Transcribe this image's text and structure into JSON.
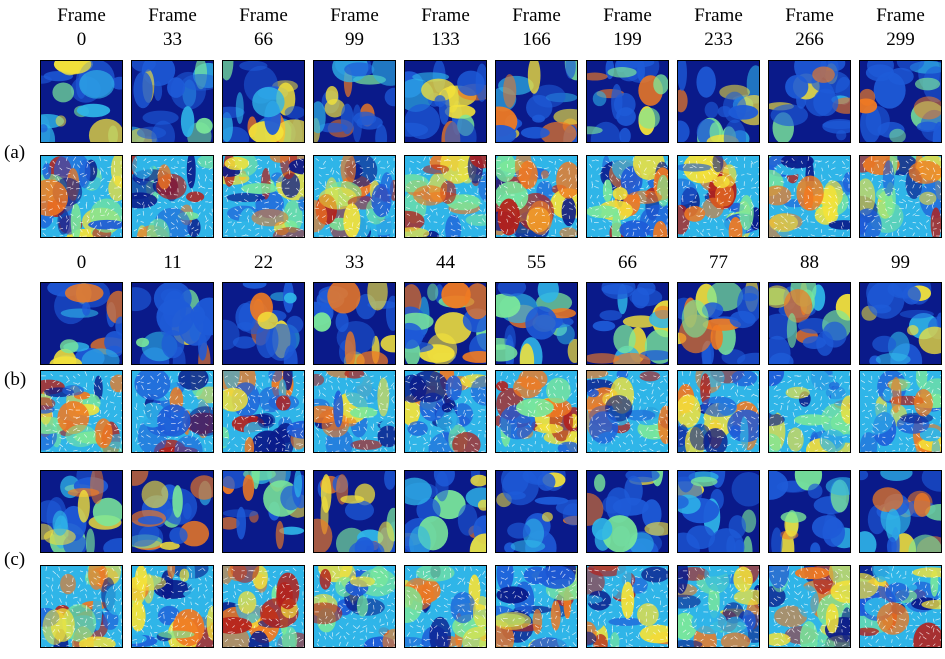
{
  "header_word": "Frame",
  "frames_a": [
    "0",
    "33",
    "66",
    "99",
    "133",
    "166",
    "199",
    "233",
    "266",
    "299"
  ],
  "frames_bc": [
    "0",
    "11",
    "22",
    "33",
    "44",
    "55",
    "66",
    "77",
    "88",
    "99"
  ],
  "row_labels": {
    "a": "(a)",
    "b": "(b)",
    "c": "(c)"
  },
  "colormap": [
    "#0a1a8a",
    "#1e5bd8",
    "#2fb5e8",
    "#7be89a",
    "#f3e23a",
    "#f07a22",
    "#b5201a"
  ]
}
